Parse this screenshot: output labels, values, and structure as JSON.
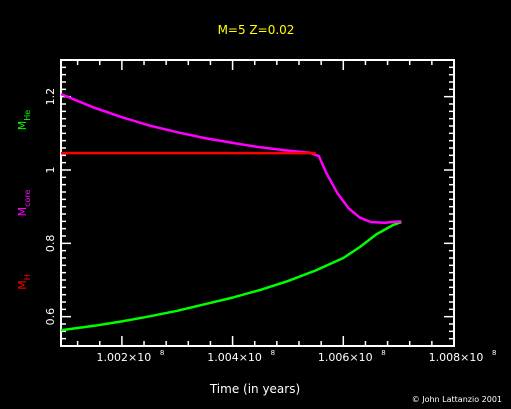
{
  "chart_data": {
    "type": "line",
    "title": "M=5 Z=0.02",
    "xlabel": "Time (in years)",
    "xlim": [
      1000900,
      1008000
    ],
    "ylim": [
      0.52,
      1.3
    ],
    "x_ticks": [
      {
        "value": 1002000,
        "label": "1.002×10",
        "exp": "8"
      },
      {
        "value": 1004000,
        "label": "1.004×10",
        "exp": "8"
      },
      {
        "value": 1006000,
        "label": "1.006×10",
        "exp": "8"
      },
      {
        "value": 1008000,
        "label": "1.008×10",
        "exp": "8"
      }
    ],
    "y_ticks": [
      {
        "value": 0.6,
        "label": "0.6"
      },
      {
        "value": 0.8,
        "label": "0.8"
      },
      {
        "value": 1.0,
        "label": "1"
      },
      {
        "value": 1.2,
        "label": "1.2"
      }
    ],
    "grid": false,
    "legend_position": "left",
    "series": [
      {
        "name": "M",
        "sub": "He",
        "color": "#00ff00",
        "points": [
          [
            1000900,
            0.563
          ],
          [
            1001500,
            0.575
          ],
          [
            1002000,
            0.587
          ],
          [
            1002500,
            0.601
          ],
          [
            1003000,
            0.616
          ],
          [
            1003500,
            0.634
          ],
          [
            1004000,
            0.652
          ],
          [
            1004500,
            0.673
          ],
          [
            1005000,
            0.697
          ],
          [
            1005500,
            0.726
          ],
          [
            1006000,
            0.76
          ],
          [
            1006300,
            0.79
          ],
          [
            1006600,
            0.825
          ],
          [
            1006900,
            0.85
          ],
          [
            1007050,
            0.858
          ]
        ]
      },
      {
        "name": "M",
        "sub": "core",
        "color": "#ff00ff",
        "points": [
          [
            1000900,
            1.207
          ],
          [
            1001500,
            1.17
          ],
          [
            1002000,
            1.144
          ],
          [
            1002500,
            1.121
          ],
          [
            1003000,
            1.103
          ],
          [
            1003500,
            1.087
          ],
          [
            1004000,
            1.074
          ],
          [
            1004500,
            1.062
          ],
          [
            1005000,
            1.053
          ],
          [
            1005400,
            1.047
          ],
          [
            1005560,
            1.038
          ],
          [
            1005700,
            0.99
          ],
          [
            1005900,
            0.935
          ],
          [
            1006100,
            0.895
          ],
          [
            1006300,
            0.87
          ],
          [
            1006500,
            0.858
          ],
          [
            1006750,
            0.856
          ],
          [
            1007050,
            0.86
          ]
        ]
      },
      {
        "name": "M",
        "sub": "H",
        "color": "#ff0000",
        "points": [
          [
            1000900,
            1.046
          ],
          [
            1005500,
            1.046
          ]
        ]
      }
    ]
  },
  "credit": "© John Lattanzio 2001"
}
